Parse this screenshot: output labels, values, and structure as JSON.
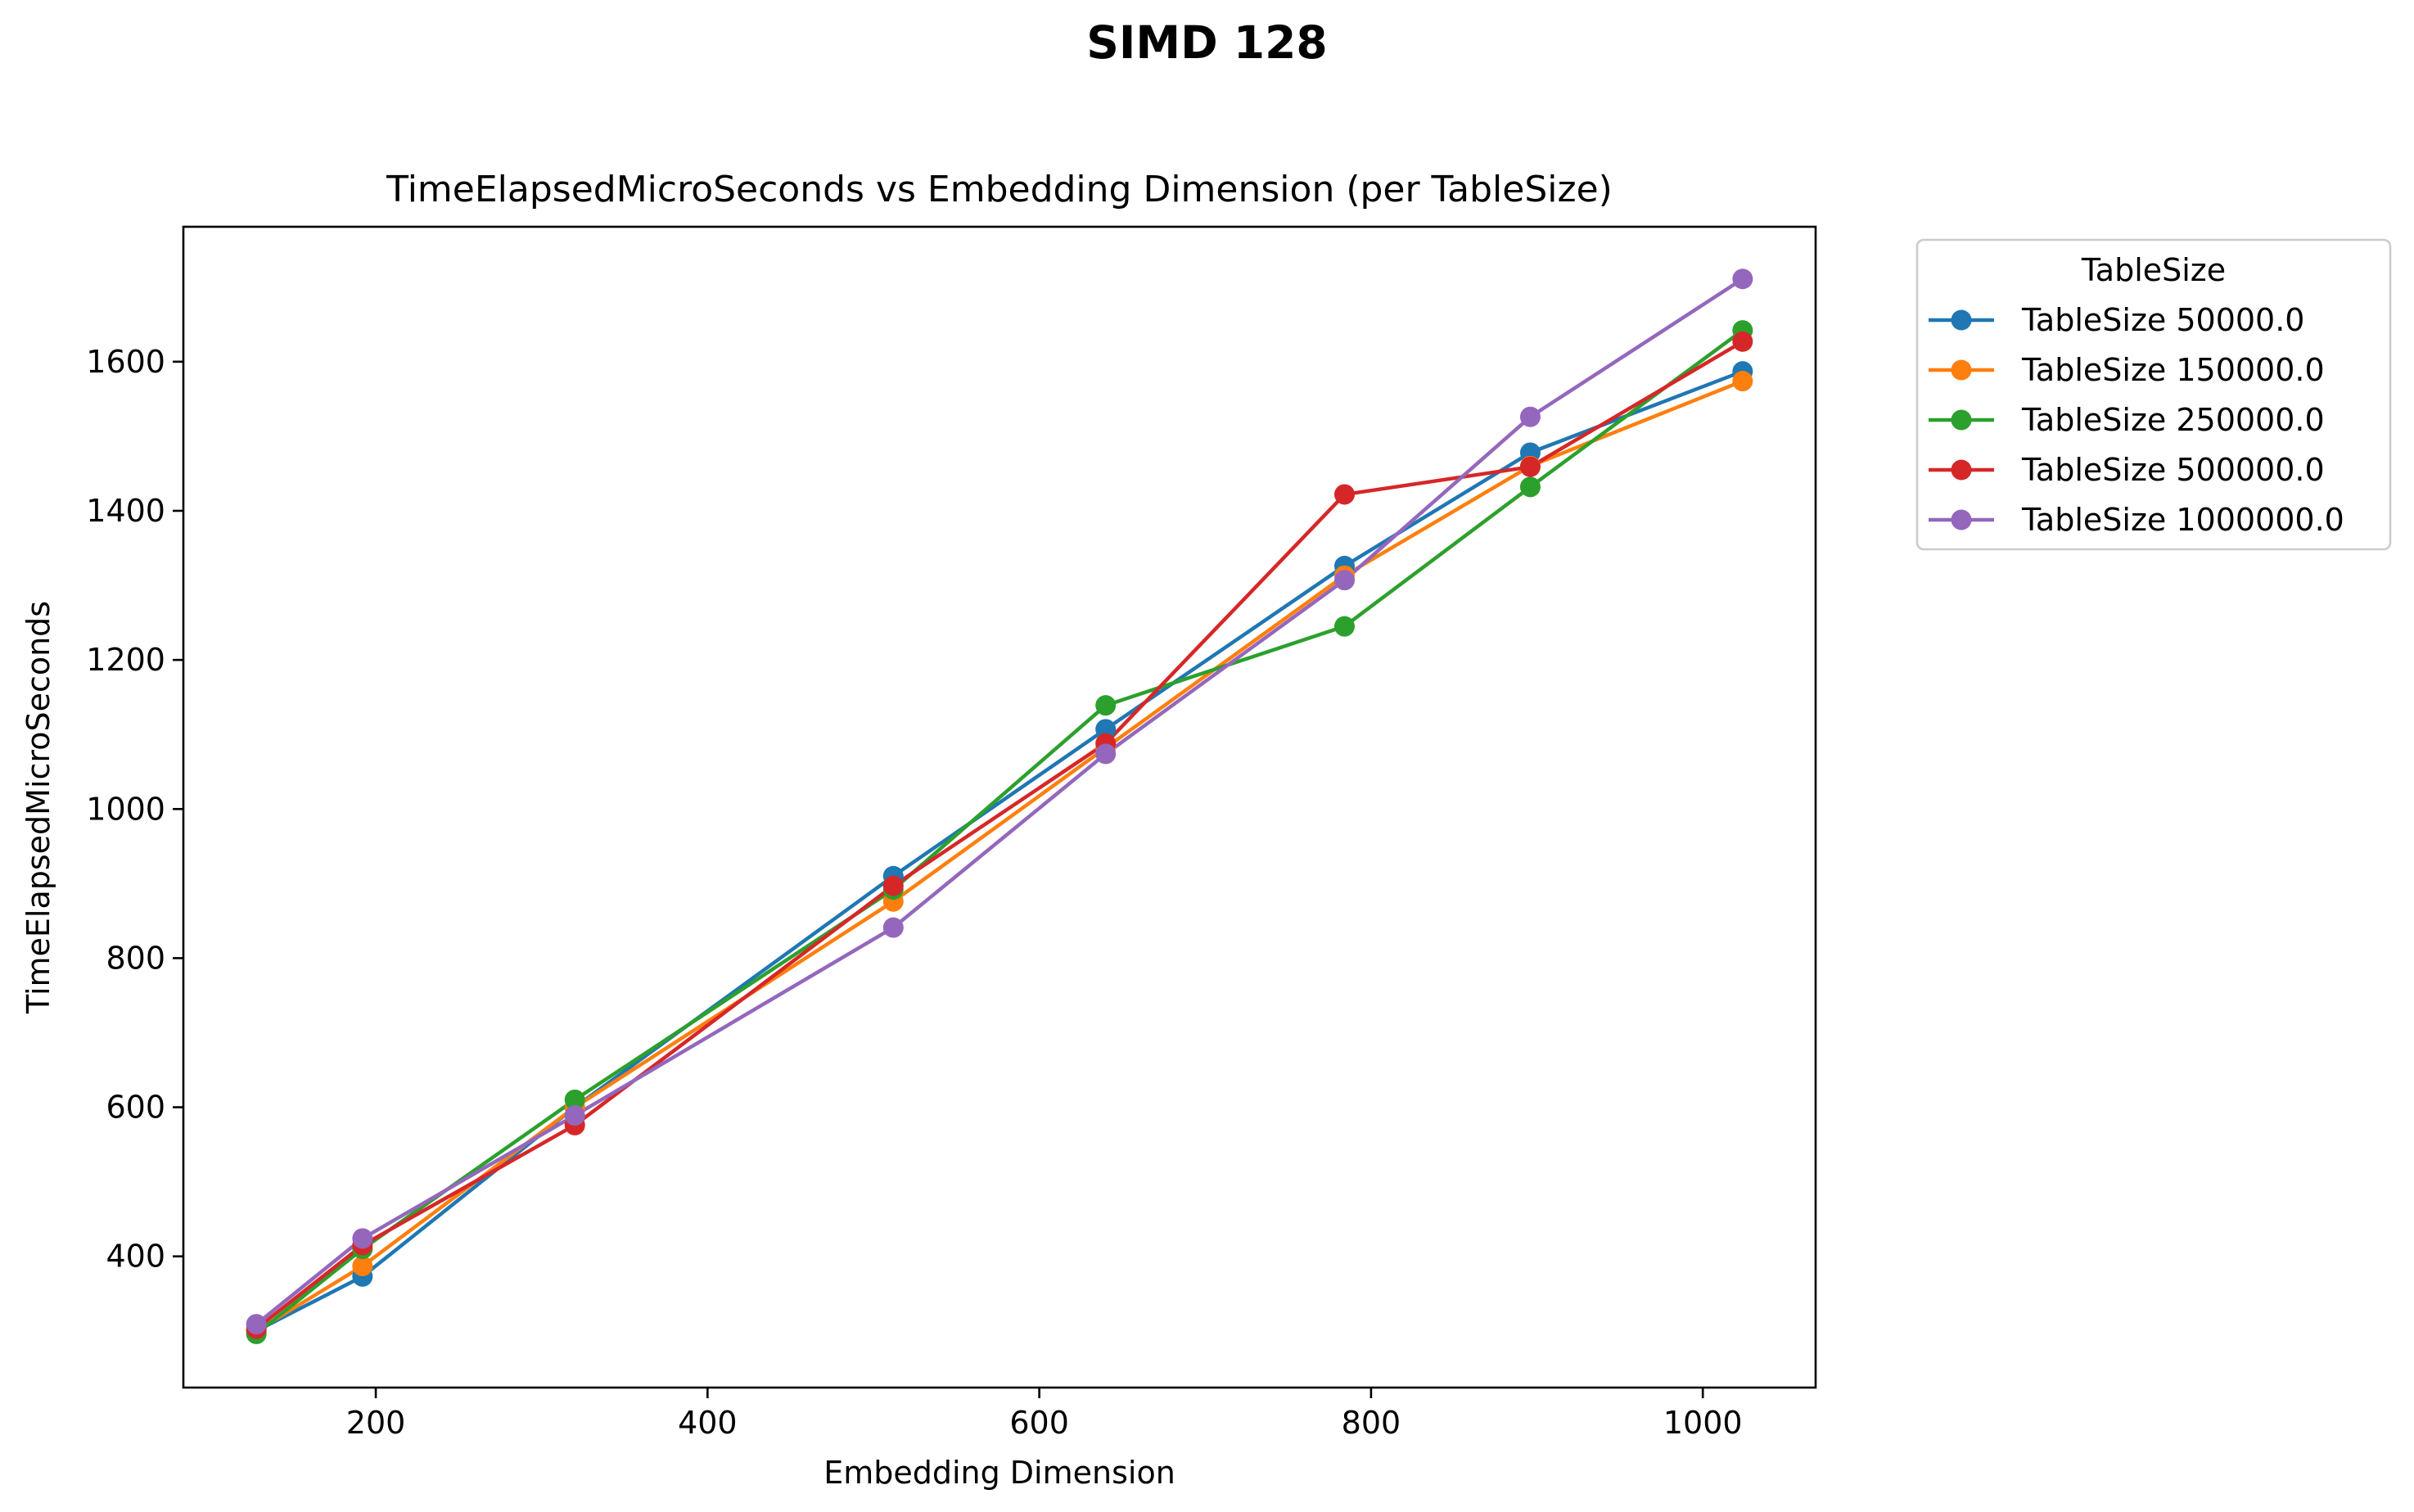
{
  "suptitle": "SIMD 128",
  "chart_data": {
    "type": "line",
    "title": "TimeElapsedMicroSeconds vs Embedding Dimension (per TableSize)",
    "xlabel": "Embedding Dimension",
    "ylabel": "TimeElapsedMicroSeconds",
    "xlim": [
      84,
      1068
    ],
    "ylim": [
      224,
      1781
    ],
    "xticks": [
      200,
      400,
      600,
      800,
      1000
    ],
    "yticks": [
      400,
      600,
      800,
      1000,
      1200,
      1400,
      1600
    ],
    "grid": false,
    "legend": {
      "title": "TableSize",
      "placement": "outside-upper-right"
    },
    "x": [
      128,
      192,
      320,
      512,
      640,
      784,
      896,
      1024
    ],
    "series": [
      {
        "name": "TableSize 50000.0",
        "color": "#1f77b4",
        "values": [
          300,
          373,
          600,
          910,
          1107,
          1326,
          1478,
          1587
        ]
      },
      {
        "name": "TableSize 150000.0",
        "color": "#ff7f0e",
        "values": [
          300,
          387,
          600,
          876,
          1082,
          1313,
          1460,
          1574
        ]
      },
      {
        "name": "TableSize 250000.0",
        "color": "#2ca02c",
        "values": [
          296,
          410,
          610,
          892,
          1139,
          1245,
          1432,
          1642
        ]
      },
      {
        "name": "TableSize 500000.0",
        "color": "#d62728",
        "values": [
          303,
          415,
          576,
          897,
          1088,
          1422,
          1459,
          1627
        ]
      },
      {
        "name": "TableSize 1000000.0",
        "color": "#9467bd",
        "values": [
          309,
          424,
          589,
          841,
          1074,
          1307,
          1526,
          1711
        ]
      }
    ]
  }
}
